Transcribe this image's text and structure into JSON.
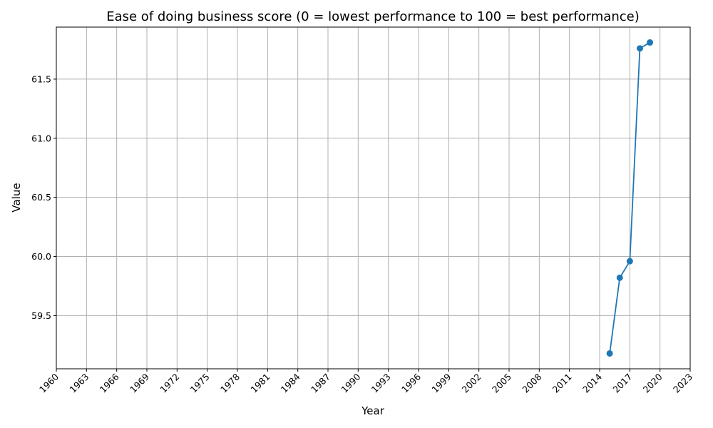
{
  "chart_data": {
    "type": "line",
    "title": "Ease of doing business score (0 = lowest performance to 100 = best performance)",
    "xlabel": "Year",
    "ylabel": "Value",
    "xlim": [
      1960,
      2023
    ],
    "ylim": [
      59.05,
      61.94
    ],
    "x_ticks": [
      1960,
      1963,
      1966,
      1969,
      1972,
      1975,
      1978,
      1981,
      1984,
      1987,
      1990,
      1993,
      1996,
      1999,
      2002,
      2005,
      2008,
      2011,
      2014,
      2017,
      2020,
      2023
    ],
    "y_ticks": [
      59.5,
      60.0,
      60.5,
      61.0,
      61.5
    ],
    "y_tick_labels": [
      "59.5",
      "60.0",
      "60.5",
      "61.0",
      "61.5"
    ],
    "grid": true,
    "series": [
      {
        "color": "#1f77b4",
        "marker": "circle",
        "x": [
          2015,
          2016,
          2017,
          2018,
          2019
        ],
        "y": [
          59.18,
          59.82,
          59.96,
          61.76,
          61.81
        ]
      }
    ]
  }
}
